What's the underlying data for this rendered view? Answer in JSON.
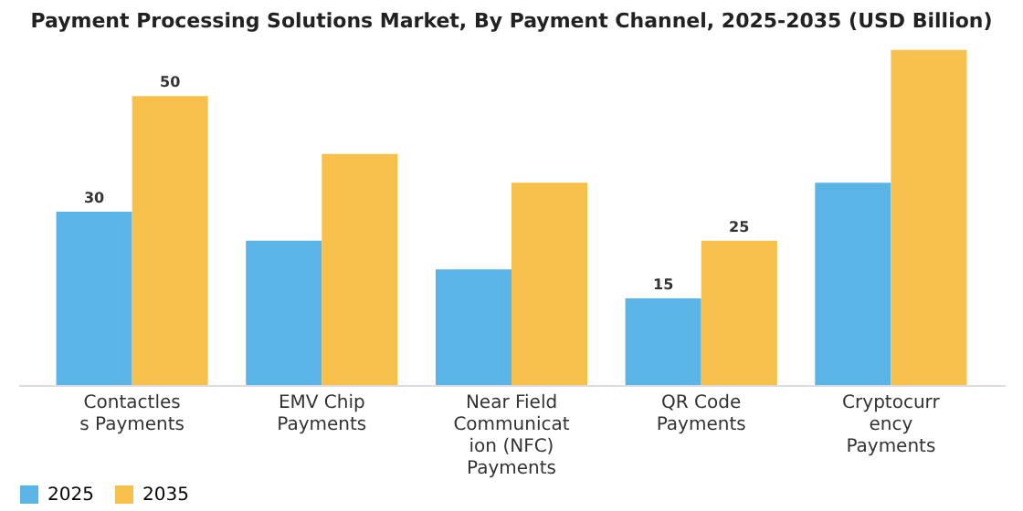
{
  "chart_data": {
    "type": "bar",
    "title": "Payment Processing Solutions Market, By Payment Channel, 2025-2035 (USD Billion)",
    "categories": [
      "Contactless Payments",
      "EMV Chip Payments",
      "Near Field Communication (NFC) Payments",
      "QR Code Payments",
      "Cryptocurrency Payments"
    ],
    "series": [
      {
        "name": "2025",
        "color": "#5ab4e6",
        "values": [
          30,
          25,
          20,
          15,
          35
        ],
        "value_labels": [
          "30",
          null,
          null,
          "15",
          null
        ]
      },
      {
        "name": "2035",
        "color": "#f7c04a",
        "values": [
          50,
          40,
          35,
          25,
          58
        ],
        "value_labels": [
          "50",
          null,
          null,
          "25",
          null
        ]
      }
    ],
    "legend": "bottom"
  }
}
